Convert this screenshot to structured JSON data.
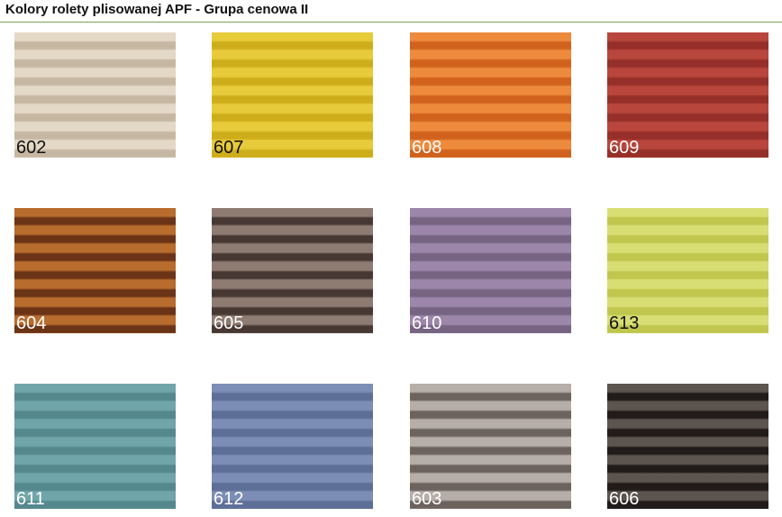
{
  "title": "Kolory rolety plisowanej APF - Grupa cenowa II",
  "accent_color": "#7aa05a",
  "swatches": [
    {
      "code": "602",
      "light": "#e4d8c6",
      "dark": "#c6b7a2",
      "text": "#111111"
    },
    {
      "code": "607",
      "light": "#e8cb3a",
      "dark": "#cead1a",
      "text": "#111111"
    },
    {
      "code": "608",
      "light": "#ee8a3c",
      "dark": "#d0621e",
      "text": "#ffffff"
    },
    {
      "code": "609",
      "light": "#b8463c",
      "dark": "#962f29",
      "text": "#ffffff"
    },
    {
      "code": "604",
      "light": "#b86c2e",
      "dark": "#6c3416",
      "text": "#ffffff"
    },
    {
      "code": "605",
      "light": "#8e7c72",
      "dark": "#483834",
      "text": "#ffffff"
    },
    {
      "code": "610",
      "light": "#9c86aa",
      "dark": "#766482",
      "text": "#ffffff"
    },
    {
      "code": "613",
      "light": "#d8de74",
      "dark": "#c0c64e",
      "text": "#111111"
    },
    {
      "code": "611",
      "light": "#70a6aa",
      "dark": "#54888d",
      "text": "#ffffff"
    },
    {
      "code": "612",
      "light": "#7c8eb6",
      "dark": "#5d6e97",
      "text": "#ffffff"
    },
    {
      "code": "603",
      "light": "#b6aea8",
      "dark": "#6c625e",
      "text": "#ffffff"
    },
    {
      "code": "606",
      "light": "#5c544e",
      "dark": "#211b19",
      "text": "#ffffff"
    }
  ]
}
